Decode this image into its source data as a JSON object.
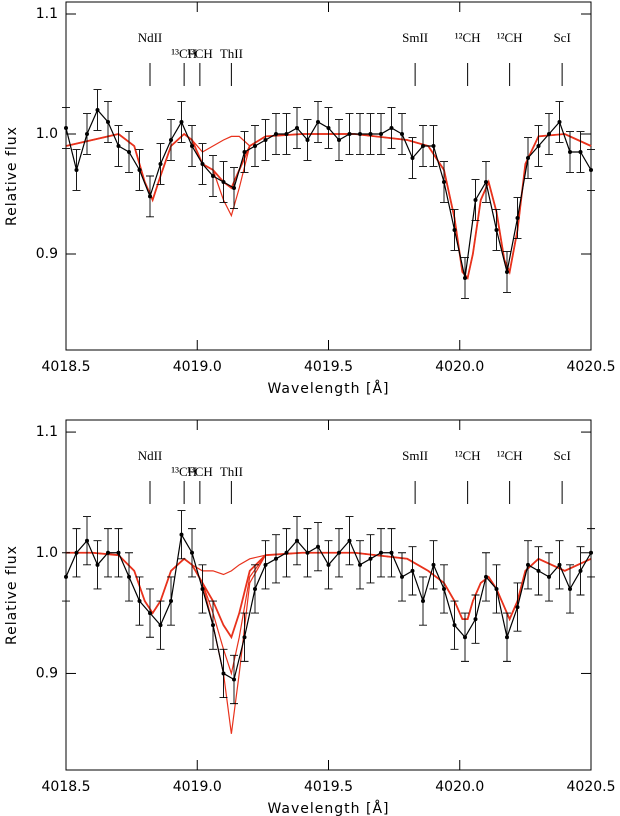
{
  "chart_data": [
    {
      "type": "spectrum",
      "xlabel": "Wavelength [Å]",
      "ylabel": "Relative flux",
      "xlim": [
        4018.5,
        4020.5
      ],
      "ylim": [
        0.82,
        1.11
      ],
      "xticks": [
        4018.5,
        {
          "value": 4019,
          "label": "4019.0"
        },
        4019.5,
        {
          "value": 4020,
          "label": "4020.0"
        },
        4020.5
      ],
      "yticks": [
        0.9,
        {
          "value": 1,
          "label": "1.0"
        },
        1.1
      ],
      "lines": [
        {
          "label": "NdII",
          "x": 4018.82
        },
        {
          "label": "¹³CH",
          "x": 4018.95
        },
        {
          "label": "¹³CH",
          "x": 4019.01
        },
        {
          "label": "ThII",
          "x": 4019.13
        },
        {
          "label": "SmII",
          "x": 4019.83
        },
        {
          "label": "¹²CH",
          "x": 4020.03
        },
        {
          "label": "¹²CH",
          "x": 4020.19
        },
        {
          "label": "ScI",
          "x": 4020.39
        }
      ],
      "observed": {
        "color": "#000000",
        "error": 0.017,
        "x": [
          4018.5,
          4018.54,
          4018.58,
          4018.62,
          4018.66,
          4018.7,
          4018.74,
          4018.78,
          4018.82,
          4018.86,
          4018.9,
          4018.94,
          4018.98,
          4019.02,
          4019.06,
          4019.1,
          4019.14,
          4019.18,
          4019.22,
          4019.26,
          4019.3,
          4019.34,
          4019.38,
          4019.42,
          4019.46,
          4019.5,
          4019.54,
          4019.58,
          4019.62,
          4019.66,
          4019.7,
          4019.74,
          4019.78,
          4019.82,
          4019.86,
          4019.9,
          4019.94,
          4019.98,
          4020.02,
          4020.06,
          4020.1,
          4020.14,
          4020.18,
          4020.22,
          4020.26,
          4020.3,
          4020.34,
          4020.38,
          4020.42,
          4020.46,
          4020.5
        ],
        "values": [
          1.005,
          0.97,
          1.0,
          1.02,
          1.01,
          0.99,
          0.985,
          0.97,
          0.948,
          0.975,
          0.995,
          1.01,
          0.99,
          0.975,
          0.965,
          0.96,
          0.955,
          0.985,
          0.99,
          0.995,
          1.0,
          1.0,
          1.005,
          0.995,
          1.01,
          1.005,
          0.995,
          1.0,
          1.0,
          1.0,
          1.0,
          1.005,
          1.0,
          0.98,
          0.99,
          0.99,
          0.96,
          0.92,
          0.88,
          0.945,
          0.96,
          0.92,
          0.885,
          0.93,
          0.98,
          0.99,
          1.0,
          1.01,
          0.985,
          0.985,
          0.97
        ]
      },
      "models": {
        "color": "#e8321c",
        "x": [
          4018.5,
          4018.6,
          4018.7,
          4018.76,
          4018.8,
          4018.83,
          4018.86,
          4018.9,
          4018.95,
          4018.98,
          4019.02,
          4019.06,
          4019.1,
          4019.13,
          4019.16,
          4019.2,
          4019.26,
          4019.4,
          4019.6,
          4019.8,
          4019.88,
          4019.94,
          4019.98,
          4020.01,
          4020.03,
          4020.05,
          4020.08,
          4020.11,
          4020.14,
          4020.17,
          4020.19,
          4020.22,
          4020.25,
          4020.3,
          4020.4,
          4020.45,
          4020.5
        ],
        "series": [
          {
            "values": [
              0.99,
              0.995,
              1.0,
              0.99,
              0.96,
              0.945,
              0.965,
              0.99,
              1.0,
              0.995,
              0.975,
              0.97,
              0.96,
              0.955,
              0.97,
              0.99,
              0.998,
              1.0,
              1.0,
              0.995,
              0.99,
              0.97,
              0.93,
              0.885,
              0.88,
              0.9,
              0.945,
              0.96,
              0.935,
              0.895,
              0.885,
              0.92,
              0.975,
              0.998,
              1.0,
              0.995,
              0.99
            ]
          },
          {
            "values": [
              0.99,
              0.995,
              1.0,
              0.99,
              0.96,
              0.945,
              0.965,
              0.99,
              1.0,
              0.995,
              0.975,
              0.97,
              0.945,
              0.932,
              0.955,
              0.99,
              0.998,
              1.0,
              1.0,
              0.995,
              0.99,
              0.97,
              0.93,
              0.885,
              0.88,
              0.9,
              0.945,
              0.96,
              0.935,
              0.895,
              0.885,
              0.92,
              0.975,
              0.998,
              1.0,
              0.995,
              0.99
            ]
          },
          {
            "values": [
              0.99,
              0.995,
              1.0,
              0.99,
              0.96,
              0.945,
              0.965,
              0.99,
              1.0,
              0.995,
              0.985,
              0.99,
              0.995,
              0.998,
              0.998,
              0.99,
              0.998,
              1.0,
              1.0,
              0.995,
              0.99,
              0.97,
              0.93,
              0.885,
              0.88,
              0.9,
              0.945,
              0.96,
              0.935,
              0.895,
              0.885,
              0.92,
              0.975,
              0.998,
              1.0,
              0.995,
              0.99
            ]
          }
        ]
      }
    },
    {
      "type": "spectrum",
      "xlabel": "Wavelength [Å]",
      "ylabel": "Relative flux",
      "xlim": [
        4018.5,
        4020.5
      ],
      "ylim": [
        0.82,
        1.11
      ],
      "xticks": [
        4018.5,
        {
          "value": 4019,
          "label": "4019.0"
        },
        4019.5,
        {
          "value": 4020,
          "label": "4020.0"
        },
        4020.5
      ],
      "yticks": [
        0.9,
        {
          "value": 1,
          "label": "1.0"
        },
        1.1
      ],
      "lines": [
        {
          "label": "NdII",
          "x": 4018.82
        },
        {
          "label": "¹³CH",
          "x": 4018.95
        },
        {
          "label": "¹³CH",
          "x": 4019.01
        },
        {
          "label": "ThII",
          "x": 4019.13
        },
        {
          "label": "SmII",
          "x": 4019.83
        },
        {
          "label": "¹²CH",
          "x": 4020.03
        },
        {
          "label": "¹²CH",
          "x": 4020.19
        },
        {
          "label": "ScI",
          "x": 4020.39
        }
      ],
      "observed": {
        "color": "#000000",
        "error": 0.02,
        "x": [
          4018.5,
          4018.54,
          4018.58,
          4018.62,
          4018.66,
          4018.7,
          4018.74,
          4018.78,
          4018.82,
          4018.86,
          4018.9,
          4018.94,
          4018.98,
          4019.02,
          4019.06,
          4019.1,
          4019.14,
          4019.18,
          4019.22,
          4019.26,
          4019.3,
          4019.34,
          4019.38,
          4019.42,
          4019.46,
          4019.5,
          4019.54,
          4019.58,
          4019.62,
          4019.66,
          4019.7,
          4019.74,
          4019.78,
          4019.82,
          4019.86,
          4019.9,
          4019.94,
          4019.98,
          4020.02,
          4020.06,
          4020.1,
          4020.14,
          4020.18,
          4020.22,
          4020.26,
          4020.3,
          4020.34,
          4020.38,
          4020.42,
          4020.46,
          4020.5
        ],
        "values": [
          0.98,
          1.0,
          1.01,
          0.99,
          1.0,
          1.0,
          0.98,
          0.96,
          0.95,
          0.94,
          0.96,
          1.015,
          1.0,
          0.97,
          0.94,
          0.9,
          0.895,
          0.93,
          0.97,
          0.99,
          0.995,
          1.0,
          1.01,
          1.0,
          1.005,
          0.99,
          1.0,
          1.01,
          0.99,
          0.995,
          1.0,
          1.0,
          0.98,
          0.985,
          0.96,
          0.99,
          0.97,
          0.94,
          0.93,
          0.945,
          0.98,
          0.97,
          0.93,
          0.955,
          0.99,
          0.985,
          0.98,
          0.99,
          0.97,
          0.985,
          1.0
        ]
      },
      "models": {
        "color": "#e8321c",
        "x": [
          4018.5,
          4018.6,
          4018.7,
          4018.76,
          4018.8,
          4018.83,
          4018.86,
          4018.9,
          4018.95,
          4018.98,
          4019.02,
          4019.06,
          4019.1,
          4019.13,
          4019.16,
          4019.2,
          4019.26,
          4019.4,
          4019.6,
          4019.8,
          4019.88,
          4019.94,
          4019.98,
          4020.01,
          4020.03,
          4020.05,
          4020.08,
          4020.11,
          4020.14,
          4020.17,
          4020.19,
          4020.22,
          4020.25,
          4020.3,
          4020.4,
          4020.45,
          4020.5
        ],
        "series": [
          {
            "values": [
              1.0,
              1.0,
              0.998,
              0.985,
              0.96,
              0.95,
              0.96,
              0.985,
              0.995,
              0.99,
              0.975,
              0.96,
              0.94,
              0.93,
              0.95,
              0.985,
              0.998,
              1.0,
              1.0,
              0.995,
              0.985,
              0.975,
              0.96,
              0.945,
              0.945,
              0.96,
              0.975,
              0.98,
              0.97,
              0.955,
              0.945,
              0.96,
              0.985,
              0.995,
              0.985,
              0.99,
              0.995
            ]
          },
          {
            "values": [
              1.0,
              1.0,
              0.998,
              0.985,
              0.96,
              0.95,
              0.96,
              0.985,
              0.995,
              0.99,
              0.985,
              0.985,
              0.982,
              0.985,
              0.99,
              0.995,
              0.998,
              1.0,
              1.0,
              0.995,
              0.985,
              0.975,
              0.96,
              0.945,
              0.945,
              0.96,
              0.975,
              0.98,
              0.97,
              0.955,
              0.945,
              0.96,
              0.985,
              0.995,
              0.985,
              0.99,
              0.995
            ]
          },
          {
            "values": [
              1.0,
              1.0,
              0.998,
              0.985,
              0.96,
              0.95,
              0.96,
              0.985,
              0.995,
              0.99,
              0.975,
              0.95,
              0.92,
              0.9,
              0.93,
              0.98,
              0.998,
              1.0,
              1.0,
              0.995,
              0.985,
              0.975,
              0.96,
              0.945,
              0.945,
              0.96,
              0.975,
              0.98,
              0.97,
              0.955,
              0.945,
              0.96,
              0.985,
              0.995,
              0.985,
              0.99,
              0.995
            ]
          },
          {
            "values": [
              1.0,
              1.0,
              0.998,
              0.985,
              0.96,
              0.95,
              0.96,
              0.985,
              0.995,
              0.99,
              0.975,
              0.94,
              0.9,
              0.85,
              0.9,
              0.975,
              0.998,
              1.0,
              1.0,
              0.995,
              0.985,
              0.975,
              0.96,
              0.945,
              0.945,
              0.96,
              0.975,
              0.98,
              0.97,
              0.955,
              0.945,
              0.96,
              0.985,
              0.995,
              0.985,
              0.99,
              0.995
            ]
          }
        ]
      }
    }
  ]
}
